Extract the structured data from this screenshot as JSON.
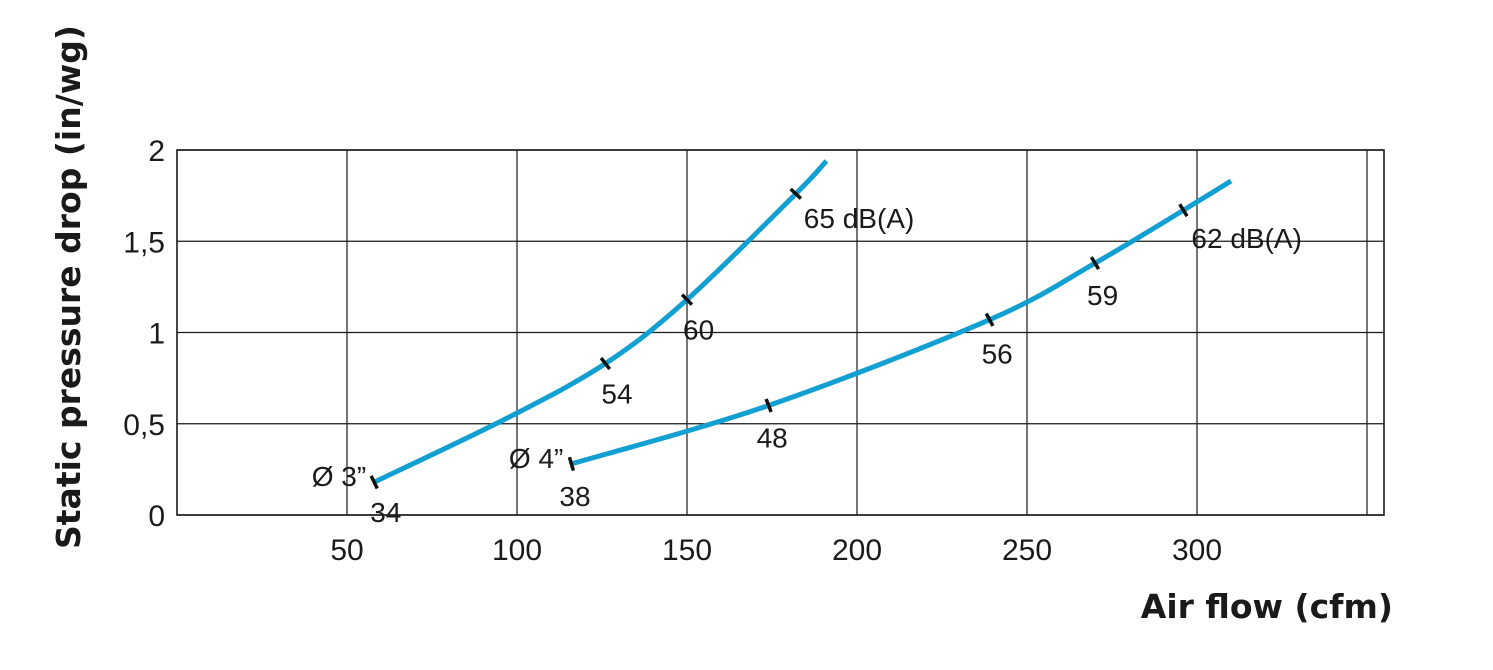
{
  "chart_data": {
    "type": "line",
    "xlabel": "Air flow (cfm)",
    "ylabel": "Static pressure drop (in/wg)",
    "xlim": [
      0,
      355
    ],
    "ylim": [
      0,
      2
    ],
    "xticks": [
      50,
      100,
      150,
      200,
      250,
      300
    ],
    "xtick_labels": [
      "50",
      "100",
      "150",
      "200",
      "250",
      "300"
    ],
    "yticks": [
      0,
      0.5,
      1,
      1.5,
      2
    ],
    "ytick_labels": [
      "0",
      "0,5",
      "1",
      "1,5",
      "2"
    ],
    "grid": true,
    "line_color": "#12a0d2",
    "series": [
      {
        "name": "Ø 3”",
        "x": [
          58,
          97,
          126,
          150,
          182,
          191
        ],
        "y": [
          0.18,
          0.53,
          0.83,
          1.18,
          1.76,
          1.94
        ],
        "markers": [
          {
            "x": 58,
            "y": 0.18,
            "label": "34"
          },
          {
            "x": 126,
            "y": 0.83,
            "label": "54"
          },
          {
            "x": 150,
            "y": 1.18,
            "label": "60"
          },
          {
            "x": 182,
            "y": 1.76,
            "label": "65 dB(A)"
          }
        ]
      },
      {
        "name": "Ø 4”",
        "x": [
          116,
          174,
          239,
          270,
          296,
          310
        ],
        "y": [
          0.28,
          0.6,
          1.07,
          1.38,
          1.67,
          1.83
        ],
        "markers": [
          {
            "x": 116,
            "y": 0.28,
            "label": "38"
          },
          {
            "x": 174,
            "y": 0.6,
            "label": "48"
          },
          {
            "x": 239,
            "y": 1.07,
            "label": "56"
          },
          {
            "x": 270,
            "y": 1.38,
            "label": "59"
          },
          {
            "x": 296,
            "y": 1.67,
            "label": "62 dB(A)"
          }
        ]
      }
    ]
  }
}
